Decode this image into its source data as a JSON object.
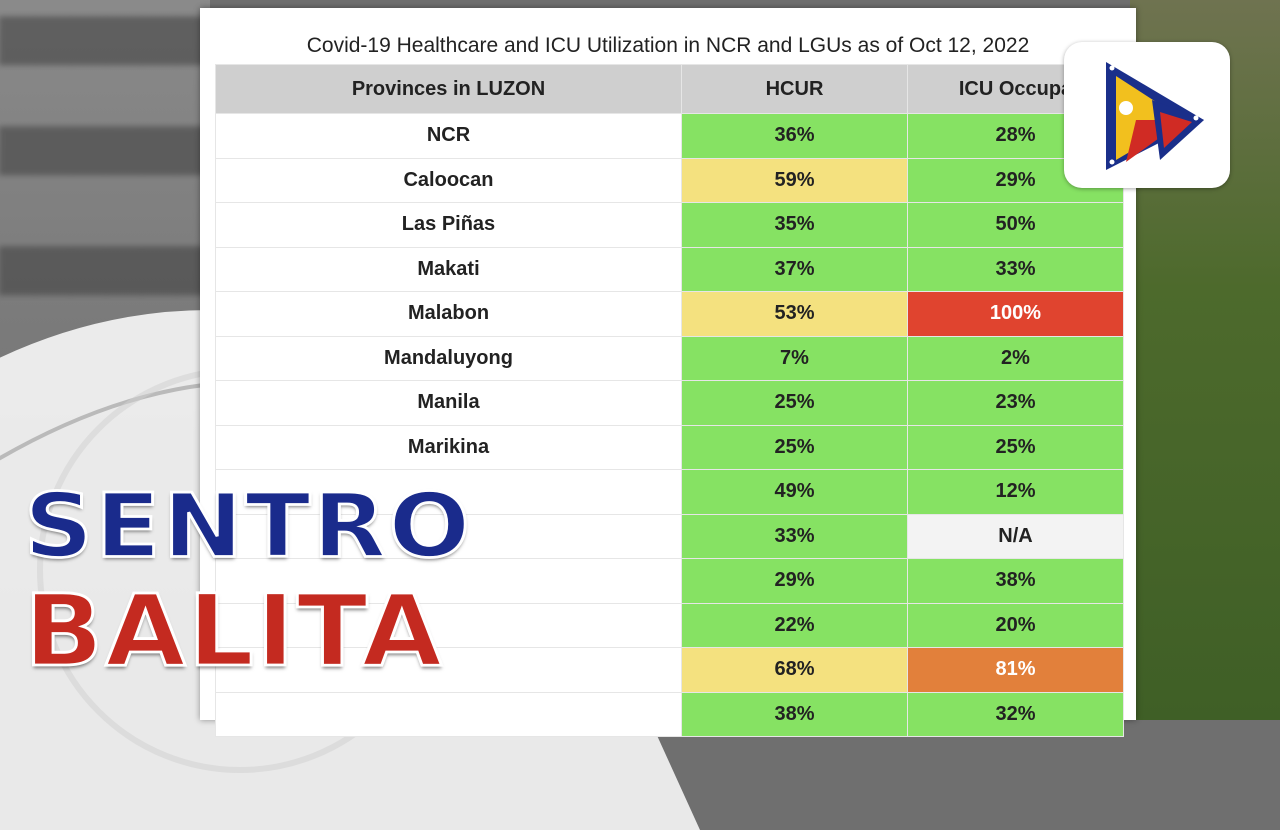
{
  "title": "Covid-19 Healthcare and ICU Utilization in NCR and LGUs as of Oct 12, 2022",
  "table": {
    "headers": [
      "Provinces in LUZON",
      "HCUR",
      "ICU Occupa"
    ],
    "rows": [
      {
        "province": "NCR",
        "hcur": "36%",
        "icu": "28%",
        "hcur_color": "green",
        "icu_color": "green"
      },
      {
        "province": "Caloocan",
        "hcur": "59%",
        "icu": "29%",
        "hcur_color": "yellow",
        "icu_color": "green"
      },
      {
        "province": "Las Piñas",
        "hcur": "35%",
        "icu": "50%",
        "hcur_color": "green",
        "icu_color": "green"
      },
      {
        "province": "Makati",
        "hcur": "37%",
        "icu": "33%",
        "hcur_color": "green",
        "icu_color": "green"
      },
      {
        "province": "Malabon",
        "hcur": "53%",
        "icu": "100%",
        "hcur_color": "yellow",
        "icu_color": "red"
      },
      {
        "province": "Mandaluyong",
        "hcur": "7%",
        "icu": "2%",
        "hcur_color": "green",
        "icu_color": "green"
      },
      {
        "province": "Manila",
        "hcur": "25%",
        "icu": "23%",
        "hcur_color": "green",
        "icu_color": "green"
      },
      {
        "province": "Marikina",
        "hcur": "25%",
        "icu": "25%",
        "hcur_color": "green",
        "icu_color": "green"
      },
      {
        "province": "",
        "hcur": "49%",
        "icu": "12%",
        "hcur_color": "green",
        "icu_color": "green"
      },
      {
        "province": "",
        "hcur": "33%",
        "icu": "N/A",
        "hcur_color": "green",
        "icu_color": "white"
      },
      {
        "province": "",
        "hcur": "29%",
        "icu": "38%",
        "hcur_color": "green",
        "icu_color": "green"
      },
      {
        "province": "",
        "hcur": "22%",
        "icu": "20%",
        "hcur_color": "green",
        "icu_color": "green"
      },
      {
        "province": "",
        "hcur": "68%",
        "icu": "81%",
        "hcur_color": "yellow",
        "icu_color": "orange"
      },
      {
        "province": "",
        "hcur": "38%",
        "icu": "32%",
        "hcur_color": "green",
        "icu_color": "green"
      }
    ]
  },
  "overlay": {
    "line1": "SENTRO",
    "line2": "BALITA"
  },
  "colors": {
    "green": "#86e263",
    "yellow": "#f4e17f",
    "red": "#e0442f",
    "orange": "#e2803b",
    "white": "#f3f3f3",
    "brand_blue": "#1a2b8c",
    "brand_red": "#c42a20"
  },
  "icons": {
    "logo": "ptv-logo-icon"
  }
}
